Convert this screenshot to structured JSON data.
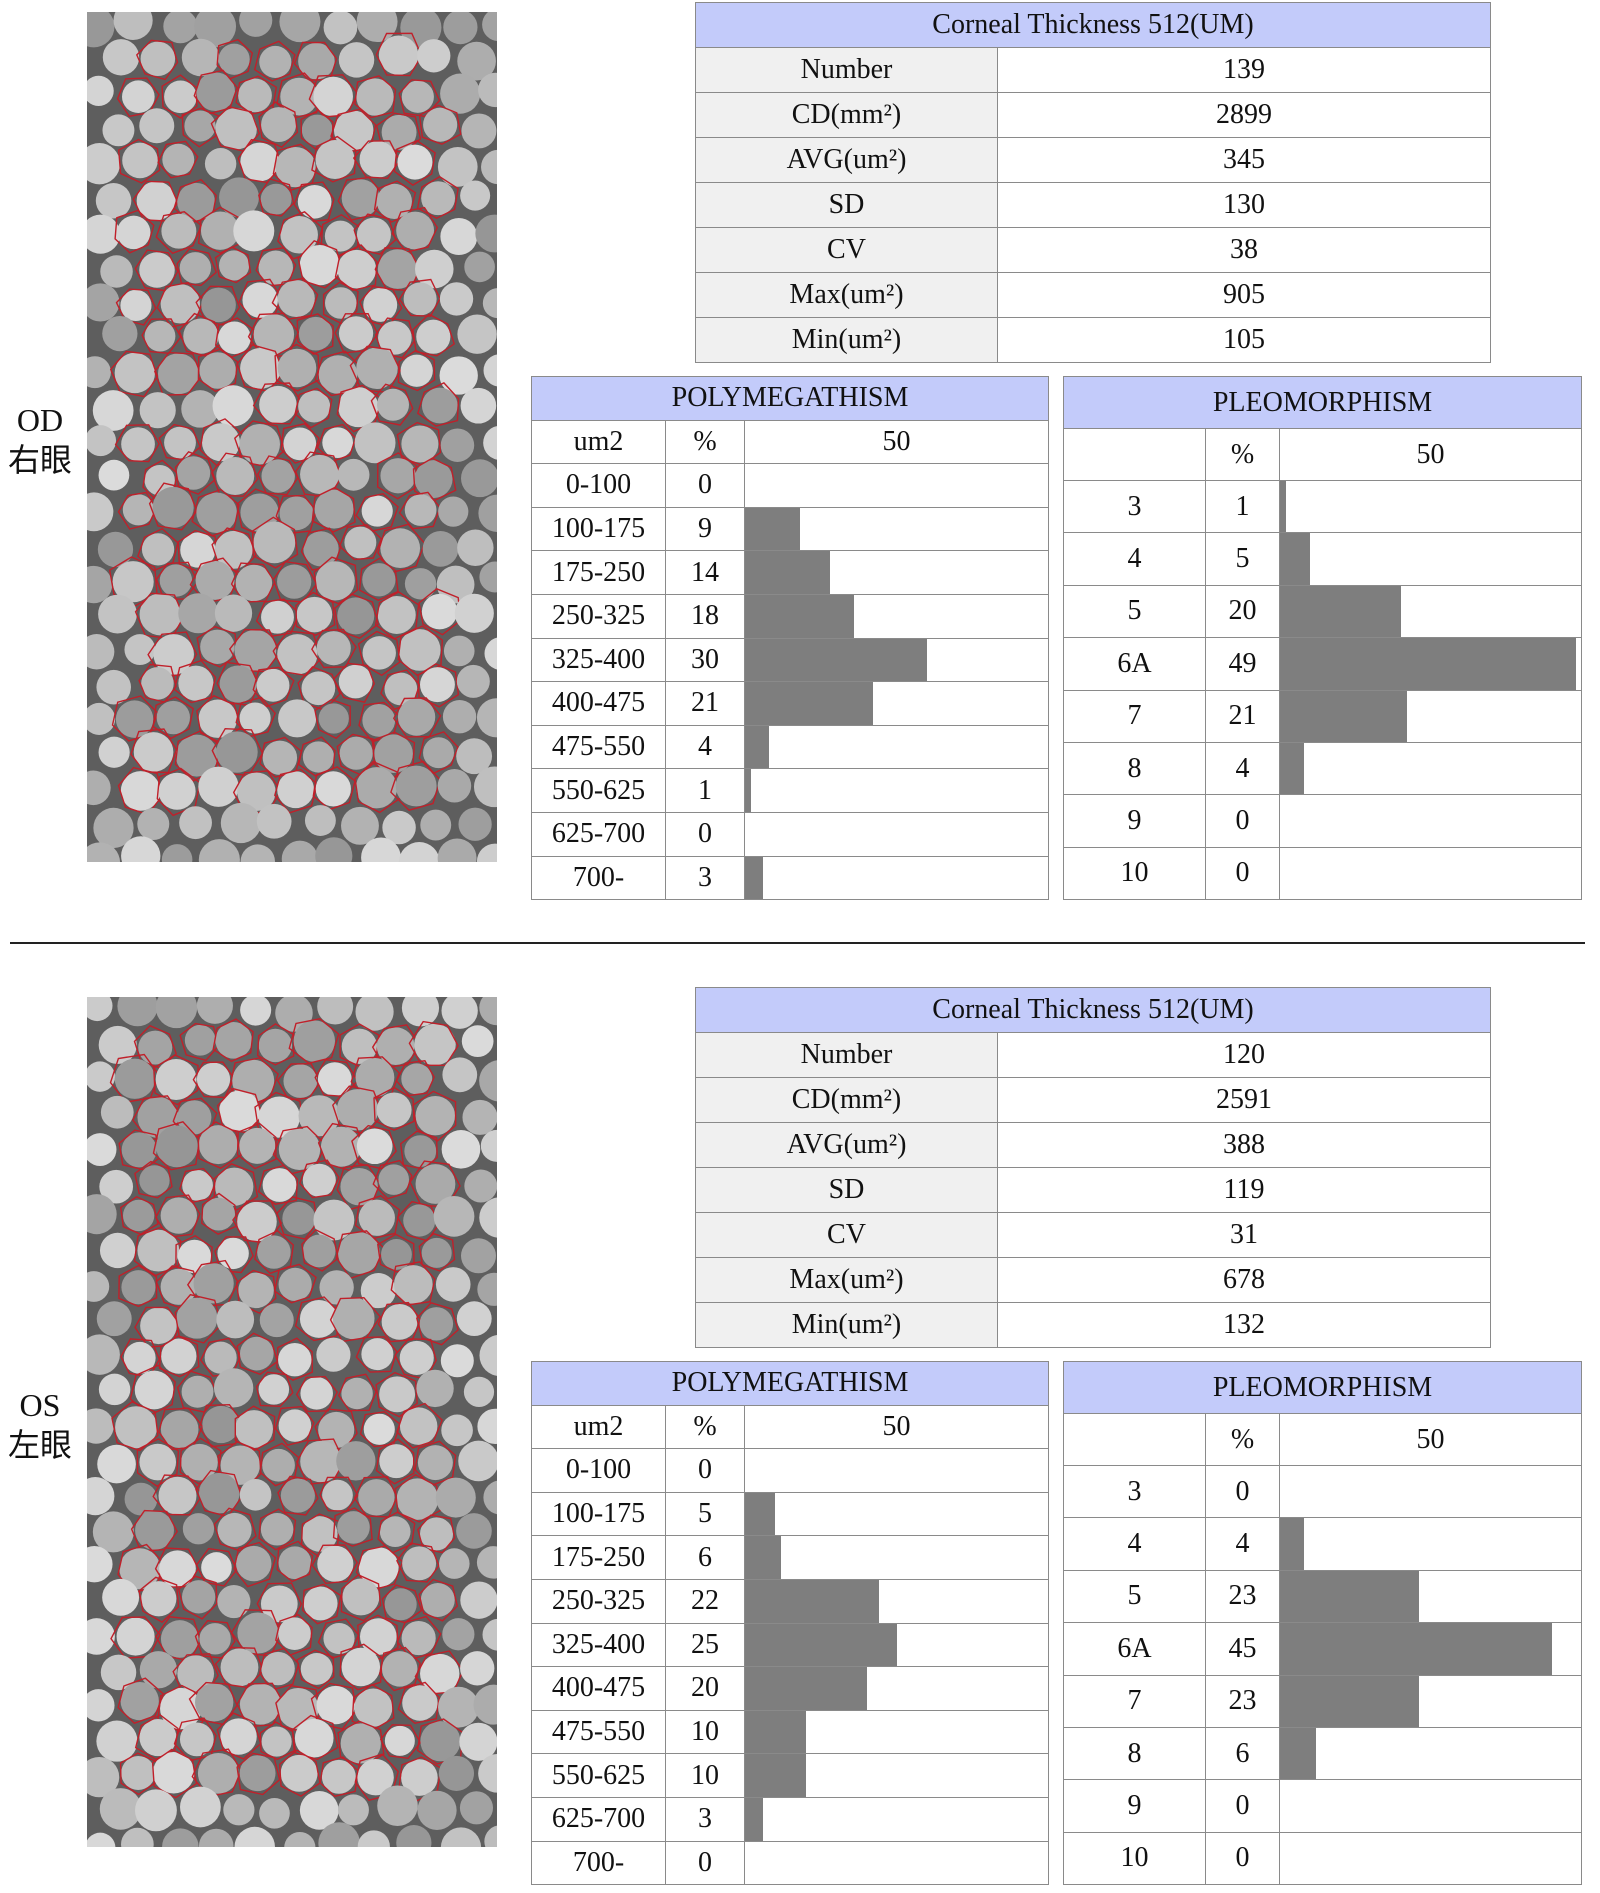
{
  "divider": "",
  "eyes": [
    {
      "label_code": "OD",
      "label_cn": "右眼",
      "stats": {
        "header": "Corneal Thickness 512(UM)",
        "rows": [
          {
            "label": "Number",
            "value": "139"
          },
          {
            "label": "CD(mm²)",
            "value": "2899"
          },
          {
            "label": "AVG(um²)",
            "value": "345"
          },
          {
            "label": "SD",
            "value": "130"
          },
          {
            "label": "CV",
            "value": "38"
          },
          {
            "label": "Max(um²)",
            "value": "905"
          },
          {
            "label": "Min(um²)",
            "value": "105"
          }
        ]
      },
      "polymegathism": {
        "title": "POLYMEGATHISM",
        "col_unit": "um2",
        "col_pct": "%",
        "scale_label": "50",
        "rows": [
          {
            "range": "0-100",
            "pct": 0
          },
          {
            "range": "100-175",
            "pct": 9
          },
          {
            "range": "175-250",
            "pct": 14
          },
          {
            "range": "250-325",
            "pct": 18
          },
          {
            "range": "325-400",
            "pct": 30
          },
          {
            "range": "400-475",
            "pct": 21
          },
          {
            "range": "475-550",
            "pct": 4
          },
          {
            "range": "550-625",
            "pct": 1
          },
          {
            "range": "625-700",
            "pct": 0
          },
          {
            "range": "700-",
            "pct": 3
          }
        ]
      },
      "pleomorphism": {
        "title": "PLEOMORPHISM",
        "col_unit": "",
        "col_pct": "%",
        "scale_label": "50",
        "rows": [
          {
            "sides": "3",
            "pct": 1
          },
          {
            "sides": "4",
            "pct": 5
          },
          {
            "sides": "5",
            "pct": 20
          },
          {
            "sides": "6A",
            "pct": 49
          },
          {
            "sides": "7",
            "pct": 21
          },
          {
            "sides": "8",
            "pct": 4
          },
          {
            "sides": "9",
            "pct": 0
          },
          {
            "sides": "10",
            "pct": 0
          }
        ]
      }
    },
    {
      "label_code": "OS",
      "label_cn": "左眼",
      "stats": {
        "header": "Corneal Thickness 512(UM)",
        "rows": [
          {
            "label": "Number",
            "value": "120"
          },
          {
            "label": "CD(mm²)",
            "value": "2591"
          },
          {
            "label": "AVG(um²)",
            "value": "388"
          },
          {
            "label": "SD",
            "value": "119"
          },
          {
            "label": "CV",
            "value": "31"
          },
          {
            "label": "Max(um²)",
            "value": "678"
          },
          {
            "label": "Min(um²)",
            "value": "132"
          }
        ]
      },
      "polymegathism": {
        "title": "POLYMEGATHISM",
        "col_unit": "um2",
        "col_pct": "%",
        "scale_label": "50",
        "rows": [
          {
            "range": "0-100",
            "pct": 0
          },
          {
            "range": "100-175",
            "pct": 5
          },
          {
            "range": "175-250",
            "pct": 6
          },
          {
            "range": "250-325",
            "pct": 22
          },
          {
            "range": "325-400",
            "pct": 25
          },
          {
            "range": "400-475",
            "pct": 20
          },
          {
            "range": "475-550",
            "pct": 10
          },
          {
            "range": "550-625",
            "pct": 10
          },
          {
            "range": "625-700",
            "pct": 3
          },
          {
            "range": "700-",
            "pct": 0
          }
        ]
      },
      "pleomorphism": {
        "title": "PLEOMORPHISM",
        "col_unit": "",
        "col_pct": "%",
        "scale_label": "50",
        "rows": [
          {
            "sides": "3",
            "pct": 0
          },
          {
            "sides": "4",
            "pct": 4
          },
          {
            "sides": "5",
            "pct": 23
          },
          {
            "sides": "6A",
            "pct": 45
          },
          {
            "sides": "7",
            "pct": 23
          },
          {
            "sides": "8",
            "pct": 6
          },
          {
            "sides": "9",
            "pct": 0
          },
          {
            "sides": "10",
            "pct": 0
          }
        ]
      }
    }
  ]
}
